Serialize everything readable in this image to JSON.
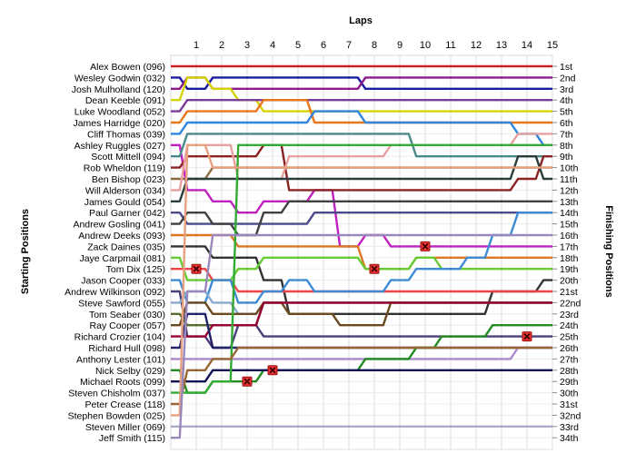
{
  "chart_data": {
    "type": "line",
    "title": "Laps",
    "ylabel_left": "Starting Positions",
    "ylabel_right": "Finishing Positions",
    "x": [
      0,
      1,
      2,
      3,
      4,
      5,
      6,
      7,
      8,
      9,
      10,
      11,
      12,
      13,
      14,
      15
    ],
    "x_tick_labels": [
      "1",
      "2",
      "3",
      "4",
      "5",
      "6",
      "7",
      "8",
      "9",
      "10",
      "11",
      "12",
      "13",
      "14",
      "15"
    ],
    "y_range": [
      1,
      35
    ],
    "grid": true,
    "starting_labels": [
      "Alex Bowen (096)",
      "Wesley Godwin (032)",
      "Josh Mulholland (120)",
      "Dean Keeble (091)",
      "Luke Woodland (052)",
      "James Harridge (020)",
      "Cliff Thomas (039)",
      "Ashley Ruggles (027)",
      "Scott Mittell (094)",
      "Rob Wheldon (119)",
      "Ben Bishop (023)",
      "Will Alderson (034)",
      "James Gould (054)",
      "Paul Garner (042)",
      "Andrew Gosling (041)",
      "Andrew Deeks (093)",
      "Zack Daines (035)",
      "Jaye Carpmail (081)",
      "Tom Dix (125)",
      "Jason Cooper (033)",
      "Andrew Wilkinson (092)",
      "Steve Sawford (055)",
      "Tom Seaber (030)",
      "Ray Cooper (057)",
      "Richard Crozier (104)",
      "Richard Hull (098)",
      "Anthony Lester (101)",
      "Nick Selby (029)",
      "Michael Roots (099)",
      "Steven Chisholm (037)",
      "Peter Crease (118)",
      "Stephen Bowden (025)",
      "Steven Miller (069)",
      "Jeff Smith (115)"
    ],
    "finishing_labels": [
      "1st",
      "2nd",
      "3rd",
      "4th",
      "5th",
      "6th",
      "7th",
      "8th",
      "9th",
      "10th",
      "11th",
      "12th",
      "13th",
      "14th",
      "15th",
      "16th",
      "17th",
      "18th",
      "19th",
      "20th",
      "21st",
      "22nd",
      "23rd",
      "24th",
      "25th",
      "26th",
      "27th",
      "28th",
      "29th",
      "30th",
      "31st",
      "32nd",
      "33rd",
      "34th"
    ],
    "series": [
      {
        "color": "#cc2222",
        "values": [
          1,
          1,
          1,
          1,
          1,
          1,
          1,
          1,
          1,
          1,
          1,
          1,
          1,
          1,
          1,
          1
        ]
      },
      {
        "color": "#1a1aa0",
        "values": [
          2,
          3,
          2,
          2,
          2,
          2,
          2,
          2,
          3,
          3,
          3,
          3,
          3,
          3,
          3,
          3
        ]
      },
      {
        "color": "#8b1a8b",
        "values": [
          3,
          2,
          3,
          3,
          3,
          3,
          3,
          3,
          2,
          2,
          2,
          2,
          2,
          2,
          2,
          2
        ]
      },
      {
        "color": "#d4d400",
        "values": [
          4,
          2,
          3,
          4,
          5,
          5,
          5,
          5,
          5,
          5,
          5,
          5,
          5,
          5,
          5,
          5
        ]
      },
      {
        "color": "#7a3d99",
        "values": [
          5,
          4,
          4,
          4,
          4,
          4,
          4,
          4,
          4,
          4,
          4,
          4,
          4,
          4,
          4,
          4
        ]
      },
      {
        "color": "#e8761a",
        "values": [
          6,
          5,
          5,
          5,
          4,
          4,
          6,
          6,
          6,
          6,
          6,
          6,
          6,
          6,
          6,
          6
        ]
      },
      {
        "color": "#2e86de",
        "values": [
          7,
          6,
          6,
          6,
          6,
          6,
          5,
          5,
          6,
          6,
          6,
          6,
          6,
          6,
          7,
          8
        ]
      },
      {
        "color": "#c020c0",
        "values": [
          8,
          12,
          13,
          14,
          13,
          13,
          12,
          17,
          16,
          17,
          17,
          17,
          17,
          17,
          17,
          17
        ]
      },
      {
        "color": "#4a8a8a",
        "values": [
          9,
          7,
          7,
          7,
          7,
          7,
          7,
          7,
          7,
          7,
          9,
          9,
          9,
          9,
          9,
          9
        ]
      },
      {
        "color": "#8b2222",
        "values": [
          10,
          9,
          9,
          9,
          8,
          12,
          12,
          12,
          12,
          12,
          12,
          12,
          12,
          12,
          11,
          9
        ]
      },
      {
        "color": "#8b6b3d",
        "values": [
          11,
          11,
          10,
          10,
          10,
          10,
          10,
          10,
          10,
          10,
          10,
          10,
          10,
          10,
          10,
          10
        ]
      },
      {
        "color": "#e8a0a0",
        "values": [
          12,
          8,
          8,
          11,
          11,
          9,
          9,
          9,
          9,
          8,
          8,
          8,
          8,
          8,
          7,
          7
        ]
      },
      {
        "color": "#2a3d3d",
        "values": [
          13,
          11,
          11,
          11,
          11,
          11,
          11,
          11,
          11,
          11,
          11,
          11,
          11,
          11,
          9,
          11
        ]
      },
      {
        "color": "#4b4b8b",
        "values": [
          14,
          15,
          15,
          15,
          15,
          15,
          14,
          14,
          14,
          14,
          14,
          14,
          14,
          14,
          14,
          14
        ]
      },
      {
        "color": "#404040",
        "values": [
          15,
          14,
          15,
          16,
          14,
          13,
          13,
          13,
          13,
          13,
          13,
          13,
          13,
          13,
          13,
          13
        ]
      },
      {
        "color": "#dd7722",
        "values": [
          16,
          16,
          16,
          17,
          17,
          17,
          17,
          17,
          19,
          19,
          18,
          18,
          18,
          18,
          18,
          18
        ]
      },
      {
        "color": "#333333",
        "values": [
          17,
          17,
          18,
          18,
          20,
          23,
          23,
          23,
          23,
          23,
          23,
          23,
          23,
          21,
          21,
          20
        ]
      },
      {
        "color": "#66cc33",
        "values": [
          18,
          20,
          20,
          19,
          18,
          18,
          18,
          18,
          19,
          19,
          18,
          19,
          19,
          19,
          19,
          19
        ]
      },
      {
        "color": "#ee4444",
        "values": [
          19,
          19,
          20,
          21,
          21,
          21,
          21,
          21,
          21,
          21,
          21,
          21,
          21,
          21,
          21,
          21
        ]
      },
      {
        "color": "#3d8bd4",
        "values": [
          20,
          22,
          20,
          22,
          21,
          20,
          21,
          21,
          21,
          20,
          19,
          19,
          18,
          16,
          14,
          14
        ]
      },
      {
        "color": "#4b3d7a",
        "values": [
          21,
          25,
          26,
          24,
          25,
          25,
          25,
          25,
          25,
          25,
          25,
          25,
          25,
          25,
          25,
          25
        ]
      },
      {
        "color": "#88aacc",
        "values": [
          22,
          21,
          22,
          23,
          22,
          22,
          22,
          22,
          22,
          22,
          22,
          22,
          22,
          22,
          22,
          22
        ]
      },
      {
        "color": "#556b2f",
        "values": [
          23,
          24,
          24,
          24,
          22,
          22,
          22,
          22,
          22,
          22,
          22,
          22,
          22,
          22,
          22,
          22
        ]
      },
      {
        "color": "#6b4a22",
        "values": [
          24,
          22,
          23,
          23,
          22,
          23,
          23,
          24,
          24,
          22,
          22,
          22,
          22,
          22,
          22,
          22
        ]
      },
      {
        "color": "#990033",
        "values": [
          25,
          25,
          24,
          24,
          22,
          22,
          22,
          22,
          22,
          22,
          22,
          22,
          22,
          22,
          22,
          22
        ]
      },
      {
        "color": "#222266",
        "values": [
          26,
          23,
          26,
          26,
          26,
          26,
          26,
          26,
          26,
          26,
          26,
          26,
          26,
          26,
          26,
          26
        ]
      },
      {
        "color": "#aa88cc",
        "values": [
          27,
          27,
          27,
          27,
          27,
          27,
          27,
          27,
          27,
          27,
          27,
          27,
          27,
          27,
          26,
          26
        ]
      },
      {
        "color": "#228b22",
        "values": [
          28,
          30,
          29,
          29,
          28,
          28,
          28,
          28,
          27,
          27,
          26,
          25,
          25,
          24,
          24,
          24
        ]
      },
      {
        "color": "#111155",
        "values": [
          29,
          29,
          28,
          28,
          28,
          28,
          28,
          28,
          28,
          28,
          28,
          28,
          28,
          28,
          28,
          28
        ]
      },
      {
        "color": "#33aa33",
        "values": [
          30,
          30,
          29,
          8,
          8,
          8,
          8,
          8,
          8,
          8,
          8,
          8,
          8,
          8,
          8,
          8
        ]
      },
      {
        "color": "#996633",
        "values": [
          31,
          28,
          27,
          26,
          26,
          26,
          26,
          26,
          26,
          26,
          26,
          26,
          26,
          26,
          26,
          26
        ]
      },
      {
        "color": "#e8a080",
        "values": [
          32,
          8,
          10,
          10,
          10,
          10,
          10,
          10,
          10,
          10,
          10,
          10,
          10,
          10,
          10,
          10
        ]
      },
      {
        "color": "#aaaacc",
        "values": [
          33,
          33,
          33,
          33,
          33,
          33,
          33,
          33,
          33,
          33,
          33,
          33,
          33,
          33,
          33,
          33
        ]
      },
      {
        "color": "#9988bb",
        "values": [
          34,
          21,
          16,
          16,
          16,
          16,
          16,
          16,
          16,
          16,
          16,
          16,
          16,
          16,
          16,
          16
        ]
      }
    ],
    "retirements": [
      {
        "lap": 1,
        "pos": 19
      },
      {
        "lap": 3,
        "pos": 29
      },
      {
        "lap": 4,
        "pos": 28
      },
      {
        "lap": 8,
        "pos": 19
      },
      {
        "lap": 10,
        "pos": 17
      },
      {
        "lap": 14,
        "pos": 25
      }
    ]
  }
}
